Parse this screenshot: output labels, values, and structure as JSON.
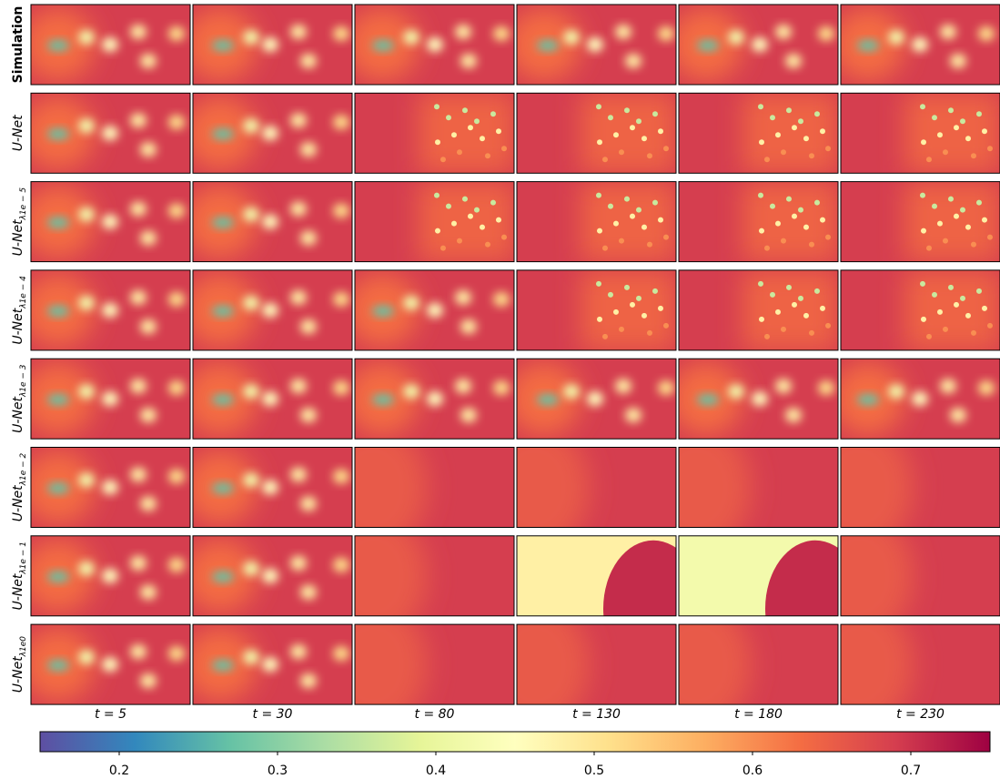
{
  "chart_data": {
    "type": "image-grid",
    "rows": [
      {
        "name": "Simulation"
      },
      {
        "name": "U-Net"
      },
      {
        "name": "U-Net",
        "subscript": "λ1e − 5"
      },
      {
        "name": "U-Net",
        "subscript": "λ1e − 4"
      },
      {
        "name": "U-Net",
        "subscript": "λ1e − 3"
      },
      {
        "name": "U-Net",
        "subscript": "λ1e − 2"
      },
      {
        "name": "U-Net",
        "subscript": "λ1e − 1"
      },
      {
        "name": "U-Net",
        "subscript": "λ1e0"
      }
    ],
    "columns": [
      "t = 5",
      "t = 30",
      "t = 80",
      "t = 130",
      "t = 180",
      "t = 230"
    ],
    "colorbar": {
      "clim": [
        0.15,
        0.75
      ],
      "ticks": [
        0.2,
        0.3,
        0.4,
        0.5,
        0.6,
        0.7
      ],
      "colormap": [
        "#5e4fa2",
        "#3288bd",
        "#66c2a5",
        "#abdda4",
        "#e6f598",
        "#ffffbf",
        "#fee08b",
        "#fdae61",
        "#f46d43",
        "#d53e4f",
        "#9e0142"
      ]
    }
  }
}
